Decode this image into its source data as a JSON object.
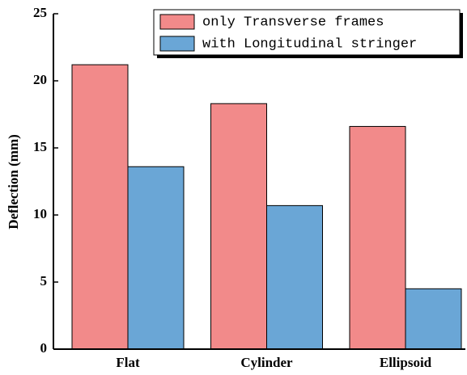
{
  "chart_data": {
    "type": "bar",
    "y_label": "Deflection (mm)",
    "categories": [
      "Flat",
      "Cylinder",
      "Ellipsoid"
    ],
    "series": [
      {
        "name": "only Transverse frames",
        "color": "#f28a8a",
        "values": [
          21.2,
          18.3,
          16.6
        ]
      },
      {
        "name": "with Longitudinal stringer",
        "color": "#6aa6d6",
        "values": [
          13.6,
          10.7,
          4.5
        ]
      }
    ],
    "ylim": [
      0,
      25
    ],
    "yticks": [
      0,
      5,
      10,
      15,
      20,
      25
    ],
    "legend": "upper right"
  }
}
